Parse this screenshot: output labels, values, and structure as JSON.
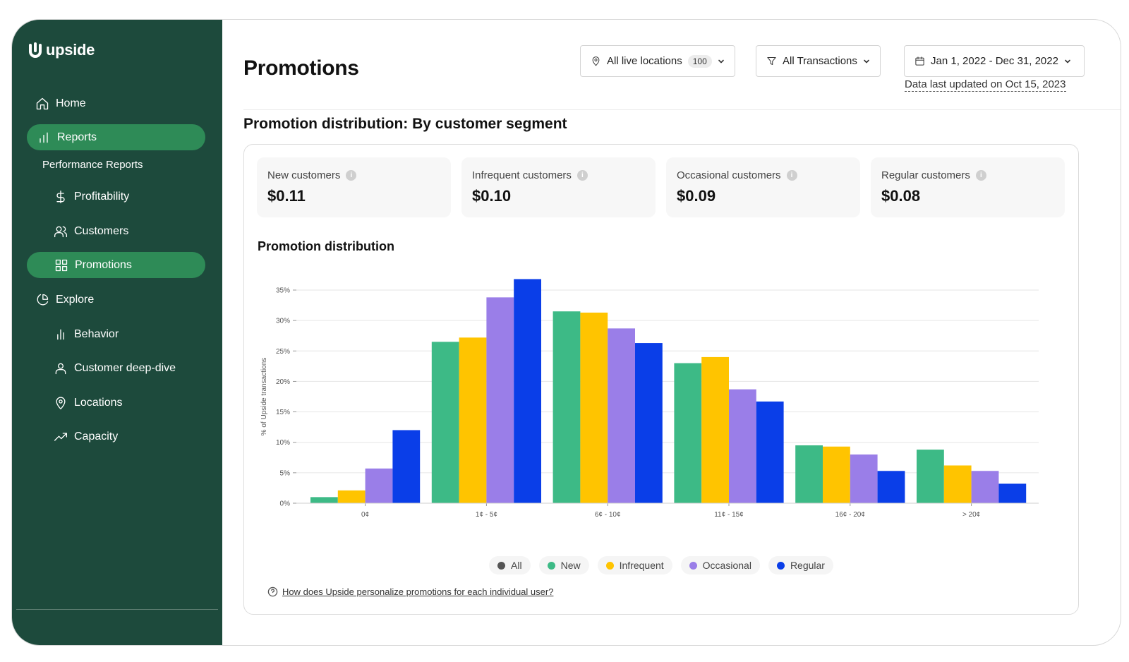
{
  "app": {
    "brand": "upside"
  },
  "sidebar": {
    "items": [
      {
        "label": "Home",
        "icon": "home-icon",
        "active": false
      },
      {
        "label": "Reports",
        "icon": "bar-chart-icon",
        "active": true
      },
      {
        "label": "Profitability",
        "icon": "dollar-icon",
        "active": false
      },
      {
        "label": "Customers",
        "icon": "users-icon",
        "active": false
      },
      {
        "label": "Promotions",
        "icon": "grid-icon",
        "active": true
      },
      {
        "label": "Explore",
        "icon": "pie-icon",
        "active": false
      },
      {
        "label": "Behavior",
        "icon": "bar-chart-icon",
        "active": false
      },
      {
        "label": "Customer deep-dive",
        "icon": "user-icon",
        "active": false
      },
      {
        "label": "Locations",
        "icon": "location-pin-icon",
        "active": false
      },
      {
        "label": "Capacity",
        "icon": "trend-up-icon",
        "active": false
      }
    ],
    "sub_heading": "Performance Reports"
  },
  "header": {
    "title": "Promotions",
    "filters": {
      "locations_label": "All live locations",
      "locations_count": "100",
      "transactions_label": "All Transactions",
      "date_range": "Jan 1, 2022 - Dec 31, 2022"
    },
    "last_updated": "Data last updated on Oct 15, 2023"
  },
  "section": {
    "title": "Promotion distribution: By customer segment"
  },
  "stats": [
    {
      "label": "New customers",
      "value": "$0.11"
    },
    {
      "label": "Infrequent customers",
      "value": "$0.10"
    },
    {
      "label": "Occasional customers",
      "value": "$0.09"
    },
    {
      "label": "Regular customers",
      "value": "$0.08"
    }
  ],
  "chart_title": "Promotion distribution",
  "legend": [
    {
      "label": "All",
      "color": "#555555"
    },
    {
      "label": "New",
      "color": "#3dba86"
    },
    {
      "label": "Infrequent",
      "color": "#ffc400"
    },
    {
      "label": "Occasional",
      "color": "#9a7ee8"
    },
    {
      "label": "Regular",
      "color": "#0a3ee8"
    }
  ],
  "help_text": "How does Upside personalize promotions for each individual user?",
  "chart_data": {
    "type": "bar",
    "categories": [
      "0¢",
      "1¢ - 5¢",
      "6¢ - 10¢",
      "11¢ - 15¢",
      "16¢ - 20¢",
      "> 20¢"
    ],
    "ylabel": "% of Upside transactions",
    "xlabel": "",
    "ylim": [
      0,
      35
    ],
    "yticks": [
      "0%",
      "5%",
      "10%",
      "15%",
      "20%",
      "25%",
      "30%",
      "35%"
    ],
    "grid": true,
    "legend_position": "bottom",
    "series": [
      {
        "name": "New",
        "color": "#3dba86",
        "values": [
          1,
          26.5,
          31.5,
          23,
          9.5,
          8.8
        ]
      },
      {
        "name": "Infrequent",
        "color": "#ffc400",
        "values": [
          2.1,
          27.2,
          31.3,
          24,
          9.3,
          6.2
        ]
      },
      {
        "name": "Occasional",
        "color": "#9a7ee8",
        "values": [
          5.7,
          33.8,
          28.7,
          18.7,
          8,
          5.3
        ]
      },
      {
        "name": "Regular",
        "color": "#0a3ee8",
        "values": [
          12,
          36.8,
          26.3,
          16.7,
          5.3,
          3.2
        ]
      }
    ]
  }
}
